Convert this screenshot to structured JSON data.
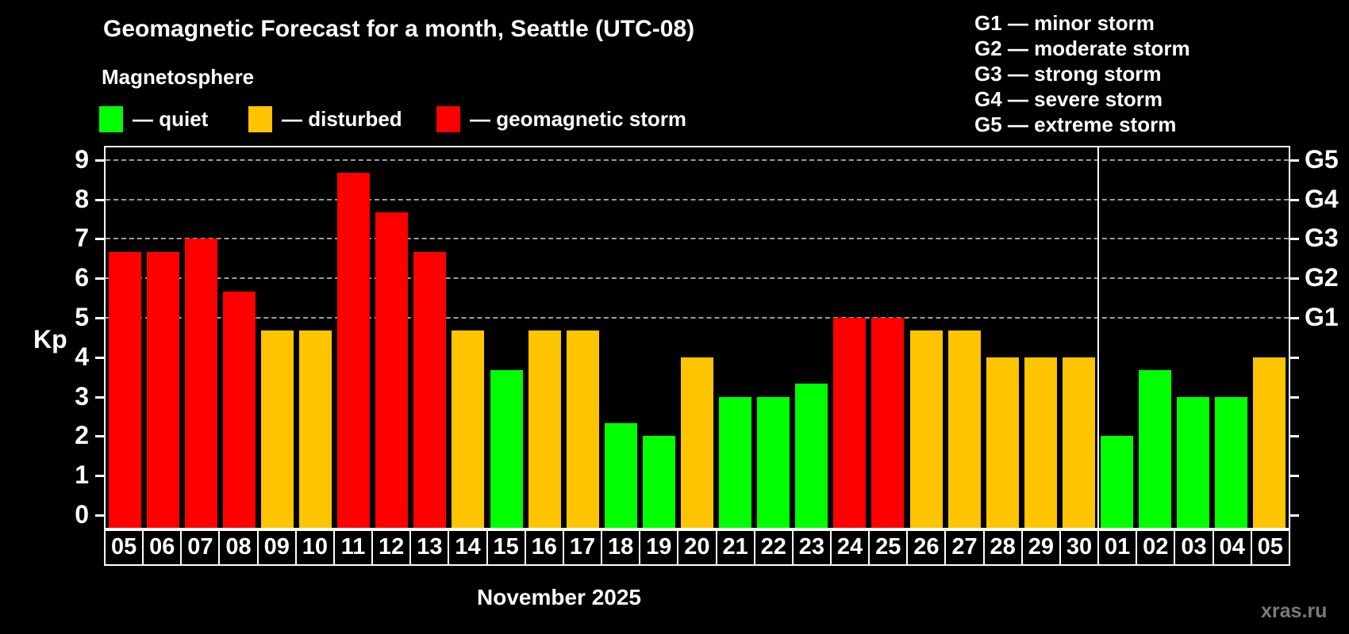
{
  "title": "Geomagnetic Forecast for a month, Seattle (UTC-08)",
  "subtitle": "Magnetosphere",
  "legend": [
    {
      "name": "quiet",
      "label": "— quiet",
      "color": "#00FF00"
    },
    {
      "name": "disturbed",
      "label": "— disturbed",
      "color": "#FFC400"
    },
    {
      "name": "storm",
      "label": "— geomagnetic storm",
      "color": "#FF0000"
    }
  ],
  "g_legend": [
    "G1 — minor storm",
    "G2 — moderate storm",
    "G3 — strong storm",
    "G4 — severe storm",
    "G5 — extreme storm"
  ],
  "y_axis": {
    "label": "Kp",
    "ticks": [
      "0",
      "1",
      "2",
      "3",
      "4",
      "5",
      "6",
      "7",
      "8",
      "9"
    ]
  },
  "right_axis": {
    "labels": [
      {
        "text": "G1",
        "kp": 5
      },
      {
        "text": "G2",
        "kp": 6
      },
      {
        "text": "G3",
        "kp": 7
      },
      {
        "text": "G4",
        "kp": 8
      },
      {
        "text": "G5",
        "kp": 9
      }
    ]
  },
  "x_axis": {
    "month_label": "November 2025"
  },
  "watermark": "xras.ru",
  "chart_data": {
    "type": "bar",
    "title": "Geomagnetic Forecast for a month, Seattle (UTC-08)",
    "subtitle": "Magnetosphere",
    "xlabel": "November 2025",
    "ylabel": "Kp",
    "ylim": [
      0,
      9
    ],
    "grid": "dashed horizontal lines at Kp 5-9 only (G1-G5 levels)",
    "legend_position": "top",
    "categories": [
      "05",
      "06",
      "07",
      "08",
      "09",
      "10",
      "11",
      "12",
      "13",
      "14",
      "15",
      "16",
      "17",
      "18",
      "19",
      "20",
      "21",
      "22",
      "23",
      "24",
      "25",
      "26",
      "27",
      "28",
      "29",
      "30",
      "01",
      "02",
      "03",
      "04",
      "05"
    ],
    "values": [
      6.67,
      6.67,
      7.0,
      5.67,
      4.67,
      4.67,
      8.67,
      7.67,
      6.67,
      4.67,
      3.67,
      4.67,
      4.67,
      2.33,
      2.0,
      4.0,
      3.0,
      3.0,
      3.33,
      5.0,
      5.0,
      4.67,
      4.67,
      4.0,
      4.0,
      4.0,
      2.0,
      3.67,
      3.0,
      3.0,
      4.0
    ],
    "statuses": [
      "storm",
      "storm",
      "storm",
      "storm",
      "disturbed",
      "disturbed",
      "storm",
      "storm",
      "storm",
      "disturbed",
      "quiet",
      "disturbed",
      "disturbed",
      "quiet",
      "quiet",
      "disturbed",
      "quiet",
      "quiet",
      "quiet",
      "storm",
      "storm",
      "disturbed",
      "disturbed",
      "disturbed",
      "disturbed",
      "disturbed",
      "quiet",
      "quiet",
      "quiet",
      "quiet",
      "disturbed"
    ],
    "colors": {
      "quiet": "#00FF00",
      "disturbed": "#FFC400",
      "storm": "#FF0000"
    },
    "gridlines_at": [
      5,
      6,
      7,
      8,
      9
    ],
    "divider_after_index": 25
  }
}
